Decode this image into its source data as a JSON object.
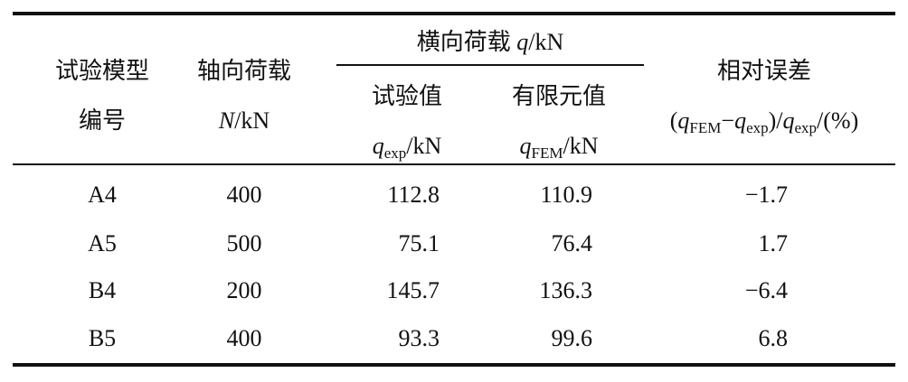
{
  "table": {
    "headers": {
      "model_line1": "试验模型",
      "model_line2": "编号",
      "axial_line1": "轴向荷载",
      "axial_var": "N",
      "axial_unit": "/kN",
      "lateral_text": "横向荷载 ",
      "lateral_var": "q",
      "lateral_unit": "/kN",
      "exp_label": "试验值",
      "exp_var": "q",
      "exp_sub": "exp",
      "exp_unit": "/kN",
      "fem_label": "有限元值",
      "fem_var": "q",
      "fem_sub": "FEM",
      "fem_unit": "/kN",
      "err_label": "相对误差",
      "err_formula": {
        "p1": "(",
        "q1": "q",
        "s1": "FEM",
        "minus": "−",
        "q2": "q",
        "s2": "exp",
        "p2": ")/",
        "q3": "q",
        "s3": "exp",
        "p3": "/(%)"
      }
    },
    "rows": [
      {
        "model": "A4",
        "axial": "400",
        "exp": "112.8",
        "fem": "110.9",
        "err": "−1.7"
      },
      {
        "model": "A5",
        "axial": "500",
        "exp": "75.1",
        "fem": "76.4",
        "err": "1.7"
      },
      {
        "model": "B4",
        "axial": "200",
        "exp": "145.7",
        "fem": "136.3",
        "err": "−6.4"
      },
      {
        "model": "B5",
        "axial": "400",
        "exp": "93.3",
        "fem": "99.6",
        "err": "6.8"
      }
    ]
  }
}
